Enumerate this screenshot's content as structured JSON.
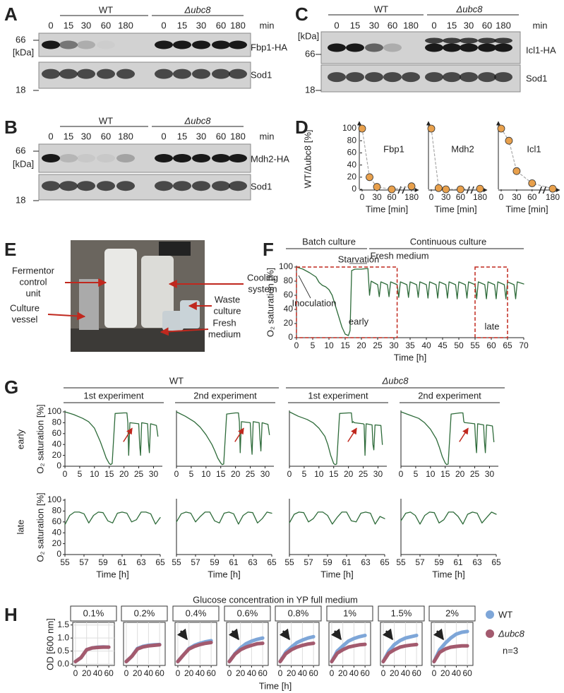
{
  "panels": [
    "A",
    "B",
    "C",
    "D",
    "E",
    "F",
    "G",
    "H"
  ],
  "blots": [
    {
      "groups": [
        "WT",
        "Δubc8"
      ],
      "unit": "min",
      "times": [
        0,
        15,
        30,
        60,
        180
      ],
      "marker_high": 66,
      "marker_unit": "[kDa]",
      "marker_low": 18,
      "targets": [
        "Fbp1-HA",
        "Sod1"
      ]
    },
    {
      "groups": [
        "WT",
        "Δubc8"
      ],
      "unit": "min",
      "times": [
        0,
        15,
        30,
        60,
        180
      ],
      "marker_high": 66,
      "marker_unit": "[kDa]",
      "marker_low": 18,
      "targets": [
        "Mdh2-HA",
        "Sod1"
      ]
    },
    {
      "groups": [
        "WT",
        "Δubc8"
      ],
      "unit": "min",
      "times": [
        0,
        15,
        30,
        60,
        180
      ],
      "marker_high": 66,
      "marker_unit": "[kDa]",
      "marker_low": 18,
      "targets": [
        "Icl1-HA",
        "Sod1"
      ]
    }
  ],
  "photo_labels": {
    "fermentor": [
      "Fermentor",
      "control",
      "unit"
    ],
    "vessel": [
      "Culture",
      "vessel"
    ],
    "cooling": [
      "Cooling",
      "system"
    ],
    "waste": [
      "Waste",
      "culture"
    ],
    "medium": [
      "Fresh",
      "medium"
    ]
  },
  "panel_g": {
    "groups": [
      "WT",
      "Δubc8"
    ],
    "experiments": [
      "1st experiment",
      "2nd experiment",
      "1st experiment",
      "2nd experiment"
    ],
    "rows": [
      "early",
      "late"
    ]
  },
  "panel_h": {
    "header": "Glucose concentration in YP full medium",
    "xlabel": "Time [h]",
    "ylabel": "OD [600 nm]",
    "legend": [
      {
        "name": "WT",
        "color": "#7ea6d8"
      },
      {
        "name": "Δubc8",
        "color": "#a35a6e"
      }
    ],
    "note": "n=3"
  },
  "chart_data": [
    {
      "type": "scatter",
      "title": "Fbp1",
      "x": [
        0,
        15,
        30,
        60,
        180
      ],
      "values": [
        100,
        20,
        4,
        0,
        5
      ],
      "color": "#e8a04c",
      "xlim": [
        0,
        180
      ],
      "xticks": [
        0,
        30,
        60,
        180
      ],
      "ylim": [
        0,
        100
      ],
      "yticks": [
        0,
        20,
        40,
        60,
        80,
        100
      ],
      "xlabel": "Time [min]",
      "ylabel": "WT/Δubc8 [%]"
    },
    {
      "type": "scatter",
      "title": "Mdh2",
      "x": [
        0,
        15,
        30,
        60,
        180
      ],
      "values": [
        100,
        2,
        0,
        0,
        1
      ],
      "color": "#e8a04c",
      "xlim": [
        0,
        180
      ],
      "xticks": [
        0,
        30,
        60,
        180
      ],
      "ylim": [
        0,
        100
      ],
      "xlabel": "Time [min]"
    },
    {
      "type": "scatter",
      "title": "Icl1",
      "x": [
        0,
        15,
        30,
        60,
        180
      ],
      "values": [
        100,
        80,
        30,
        10,
        1
      ],
      "color": "#e8a04c",
      "xlim": [
        0,
        180
      ],
      "xticks": [
        0,
        30,
        60,
        180
      ],
      "ylim": [
        0,
        100
      ],
      "xlabel": "Time [min]"
    },
    {
      "type": "line",
      "x": [
        0,
        2,
        4,
        6,
        7,
        8,
        9,
        10,
        11,
        12,
        13,
        14,
        15,
        16,
        16.5,
        17,
        18,
        20,
        22,
        22.5,
        23,
        25,
        25.5,
        26,
        28,
        28.5,
        29,
        31,
        31.5,
        32,
        34,
        34.5,
        35,
        37,
        37.5,
        38,
        40,
        40.5,
        41,
        43,
        43.5,
        44,
        46,
        46.5,
        47,
        49,
        49.5,
        50,
        52,
        52.5,
        53,
        55,
        55.5,
        56,
        58,
        58.5,
        59,
        61,
        61.5,
        62,
        64,
        64.5,
        65,
        67,
        67.5,
        68,
        70
      ],
      "values": [
        100,
        97,
        92,
        86,
        78,
        74,
        72,
        68,
        60,
        45,
        30,
        15,
        5,
        3,
        10,
        95,
        97,
        97,
        98,
        60,
        80,
        75,
        58,
        79,
        75,
        58,
        79,
        75,
        57,
        79,
        75,
        57,
        79,
        75,
        57,
        79,
        75,
        56,
        79,
        75,
        56,
        79,
        75,
        56,
        79,
        75,
        55,
        79,
        75,
        56,
        79,
        75,
        55,
        79,
        75,
        55,
        79,
        75,
        55,
        79,
        75,
        55,
        79,
        75,
        55,
        79,
        76
      ],
      "color": "#2e6b3a",
      "xlim": [
        0,
        70
      ],
      "xticks": [
        0,
        5,
        10,
        15,
        20,
        25,
        30,
        35,
        40,
        45,
        50,
        55,
        60,
        65,
        70
      ],
      "ylim": [
        0,
        100
      ],
      "yticks": [
        0,
        20,
        40,
        60,
        80,
        100
      ],
      "xlabel": "Time [h]",
      "ylabel": "O₂ saturation [%]",
      "annotations": [
        "Batch culture",
        "Continuous culture",
        "Starvation",
        "Fresh medium",
        "Inoculation",
        "early",
        "late"
      ]
    },
    {
      "type": "line",
      "x": [
        0,
        3,
        6,
        8,
        10,
        12,
        13,
        14,
        15,
        15.5,
        16,
        17,
        20,
        21,
        21.3,
        21.6,
        22,
        25,
        25.3,
        25.6,
        26,
        28,
        28.3,
        28.6,
        29,
        31,
        31.5
      ],
      "values": [
        100,
        95,
        88,
        82,
        70,
        45,
        30,
        15,
        5,
        3,
        5,
        97,
        98,
        98,
        80,
        20,
        80,
        78,
        40,
        20,
        80,
        78,
        45,
        25,
        78,
        75,
        55
      ],
      "color": "#2e6b3a",
      "xlim": [
        0,
        33
      ],
      "xticks": [
        0,
        5,
        10,
        15,
        20,
        25,
        30
      ],
      "ylim": [
        0,
        100
      ],
      "yticks": [
        0,
        20,
        40,
        60,
        80,
        100
      ],
      "ylabel": "O₂ saturation [%]"
    },
    {
      "type": "line",
      "x": [
        0,
        3,
        6,
        8,
        10,
        12,
        13,
        14,
        15,
        15.5,
        16,
        17,
        20,
        21,
        21.3,
        21.6,
        22,
        25,
        25.3,
        25.6,
        26,
        28,
        28.3,
        28.6,
        29,
        31,
        31.5
      ],
      "values": [
        100,
        92,
        82,
        72,
        58,
        40,
        28,
        15,
        6,
        3,
        4,
        96,
        98,
        98,
        82,
        25,
        82,
        80,
        45,
        22,
        82,
        80,
        50,
        28,
        80,
        77,
        58
      ],
      "color": "#2e6b3a",
      "xlim": [
        0,
        33
      ],
      "xticks": [
        0,
        5,
        10,
        15,
        20,
        25,
        30
      ],
      "ylim": [
        0,
        100
      ]
    },
    {
      "type": "line",
      "x": [
        0,
        3,
        6,
        8,
        10,
        12,
        13,
        14,
        15,
        15.5,
        16,
        17,
        20,
        21,
        21.3,
        21.6,
        22,
        25,
        25.3,
        25.6,
        26,
        28,
        28.3,
        28.6,
        29,
        31,
        31.5
      ],
      "values": [
        100,
        92,
        86,
        80,
        70,
        55,
        40,
        20,
        5,
        3,
        4,
        97,
        98,
        98,
        80,
        82,
        80,
        78,
        77,
        20,
        78,
        76,
        40,
        30,
        76,
        75,
        40
      ],
      "color": "#2e6b3a",
      "xlim": [
        0,
        33
      ],
      "xticks": [
        0,
        5,
        10,
        15,
        20,
        25,
        30
      ],
      "ylim": [
        0,
        100
      ]
    },
    {
      "type": "line",
      "x": [
        0,
        3,
        6,
        8,
        10,
        12,
        13,
        14,
        15,
        15.5,
        16,
        17,
        20,
        21,
        21.3,
        21.6,
        22,
        25,
        25.3,
        25.6,
        26,
        28,
        28.3,
        28.6,
        29,
        31,
        31.5
      ],
      "values": [
        100,
        94,
        88,
        80,
        68,
        50,
        35,
        18,
        6,
        3,
        4,
        96,
        98,
        98,
        82,
        80,
        80,
        78,
        45,
        25,
        78,
        76,
        45,
        25,
        76,
        74,
        45
      ],
      "color": "#2e6b3a",
      "xlim": [
        0,
        33
      ],
      "xticks": [
        0,
        5,
        10,
        15,
        20,
        25,
        30
      ],
      "ylim": [
        0,
        100
      ]
    },
    {
      "type": "line",
      "x": [
        55,
        55.5,
        56,
        56.5,
        57,
        57.5,
        58,
        58.5,
        59,
        59.5,
        60,
        60.5,
        61,
        61.5,
        62,
        62.5,
        63,
        63.5,
        64,
        64.5,
        65
      ],
      "values": [
        55,
        72,
        78,
        78,
        75,
        58,
        72,
        78,
        77,
        62,
        58,
        76,
        78,
        76,
        60,
        64,
        78,
        78,
        75,
        56,
        68
      ],
      "color": "#2e6b3a",
      "xlim": [
        55,
        65
      ],
      "xticks": [
        55,
        57,
        59,
        61,
        63,
        65
      ],
      "ylim": [
        0,
        100
      ],
      "yticks": [
        0,
        20,
        40,
        60,
        80,
        100
      ],
      "xlabel": "Time [h]",
      "ylabel": "O₂ saturation [%]"
    },
    {
      "type": "line",
      "x": [
        55,
        55.5,
        56,
        56.5,
        57,
        57.5,
        58,
        58.5,
        59,
        59.5,
        60,
        60.5,
        61,
        61.5,
        62,
        62.5,
        63,
        63.5,
        64,
        64.5,
        65
      ],
      "values": [
        60,
        75,
        78,
        76,
        60,
        70,
        78,
        78,
        62,
        58,
        76,
        78,
        75,
        56,
        72,
        78,
        77,
        58,
        66,
        78,
        76
      ],
      "color": "#2e6b3a",
      "xlim": [
        55,
        65
      ],
      "xticks": [
        55,
        57,
        59,
        61,
        63,
        65
      ],
      "ylim": [
        0,
        100
      ],
      "xlabel": "Time [h]"
    },
    {
      "type": "line",
      "x": [
        55,
        55.5,
        56,
        56.5,
        57,
        57.5,
        58,
        58.5,
        59,
        59.5,
        60,
        60.5,
        61,
        61.5,
        62,
        62.5,
        63,
        63.5,
        64,
        64.5,
        65
      ],
      "values": [
        58,
        74,
        78,
        77,
        60,
        66,
        78,
        78,
        72,
        56,
        68,
        78,
        78,
        62,
        60,
        76,
        78,
        76,
        56,
        70,
        66
      ],
      "color": "#2e6b3a",
      "xlim": [
        55,
        65
      ],
      "xticks": [
        55,
        57,
        59,
        61,
        63,
        65
      ],
      "ylim": [
        0,
        100
      ],
      "xlabel": "Time [h]"
    },
    {
      "type": "line",
      "x": [
        55,
        55.5,
        56,
        56.5,
        57,
        57.5,
        58,
        58.5,
        59,
        59.5,
        60,
        60.5,
        61,
        61.5,
        62,
        62.5,
        63,
        63.5,
        64,
        64.5,
        65
      ],
      "values": [
        62,
        76,
        78,
        72,
        56,
        72,
        78,
        77,
        58,
        64,
        78,
        78,
        70,
        56,
        74,
        78,
        76,
        58,
        68,
        78,
        74
      ],
      "color": "#2e6b3a",
      "xlim": [
        55,
        65
      ],
      "xticks": [
        55,
        57,
        59,
        61,
        63,
        65
      ],
      "ylim": [
        0,
        100
      ],
      "xlabel": "Time [h]"
    },
    {
      "type": "line",
      "title": "0.1%",
      "x": [
        0,
        10,
        20,
        30,
        40,
        50,
        60
      ],
      "series": [
        {
          "color": "#7ea6d8",
          "values": [
            0.1,
            0.25,
            0.55,
            0.62,
            0.65,
            0.66,
            0.65
          ]
        },
        {
          "color": "#a35a6e",
          "values": [
            0.1,
            0.25,
            0.55,
            0.62,
            0.64,
            0.65,
            0.65
          ]
        }
      ],
      "xlim": [
        -5,
        70
      ],
      "xticks": [
        0,
        20,
        40,
        60
      ],
      "ylim": [
        -0.05,
        1.6
      ],
      "yticks": [
        {
          "value": 0,
          "label": "0.0"
        },
        {
          "value": 0.5,
          "label": "0.5"
        },
        {
          "value": 1,
          "label": "1.0"
        },
        {
          "value": 1.5,
          "label": "1.5"
        }
      ]
    },
    {
      "type": "line",
      "title": "0.2%",
      "x": [
        0,
        10,
        20,
        30,
        40,
        50,
        60
      ],
      "series": [
        {
          "color": "#7ea6d8",
          "values": [
            0.1,
            0.3,
            0.6,
            0.68,
            0.72,
            0.74,
            0.75
          ]
        },
        {
          "color": "#a35a6e",
          "values": [
            0.1,
            0.3,
            0.58,
            0.66,
            0.7,
            0.72,
            0.74
          ]
        }
      ],
      "xlim": [
        -5,
        70
      ],
      "xticks": [
        0,
        20,
        40,
        60
      ],
      "ylim": [
        -0.05,
        1.6
      ]
    },
    {
      "type": "line",
      "title": "0.4%",
      "x": [
        0,
        10,
        20,
        30,
        40,
        50,
        60
      ],
      "series": [
        {
          "color": "#7ea6d8",
          "values": [
            0.1,
            0.35,
            0.6,
            0.72,
            0.8,
            0.86,
            0.9
          ]
        },
        {
          "color": "#a35a6e",
          "values": [
            0.1,
            0.35,
            0.58,
            0.68,
            0.75,
            0.8,
            0.83
          ]
        }
      ],
      "xlim": [
        -5,
        70
      ],
      "xticks": [
        0,
        20,
        40,
        60
      ],
      "ylim": [
        -0.05,
        1.6
      ]
    },
    {
      "type": "line",
      "title": "0.6%",
      "x": [
        0,
        10,
        20,
        30,
        40,
        50,
        60
      ],
      "series": [
        {
          "color": "#7ea6d8",
          "values": [
            0.1,
            0.4,
            0.62,
            0.78,
            0.88,
            0.95,
            1.0
          ]
        },
        {
          "color": "#a35a6e",
          "values": [
            0.1,
            0.38,
            0.55,
            0.65,
            0.72,
            0.78,
            0.8
          ]
        }
      ],
      "xlim": [
        -5,
        70
      ],
      "xticks": [
        0,
        20,
        40,
        60
      ],
      "ylim": [
        -0.05,
        1.6
      ]
    },
    {
      "type": "line",
      "title": "0.8%",
      "x": [
        0,
        10,
        20,
        30,
        40,
        50,
        60
      ],
      "series": [
        {
          "color": "#7ea6d8",
          "values": [
            0.1,
            0.45,
            0.65,
            0.82,
            0.92,
            1.0,
            1.05
          ]
        },
        {
          "color": "#a35a6e",
          "values": [
            0.1,
            0.4,
            0.55,
            0.65,
            0.72,
            0.77,
            0.8
          ]
        }
      ],
      "xlim": [
        -5,
        70
      ],
      "xticks": [
        0,
        20,
        40,
        60
      ],
      "ylim": [
        -0.05,
        1.6
      ]
    },
    {
      "type": "line",
      "title": "1%",
      "x": [
        0,
        10,
        20,
        30,
        40,
        50,
        60
      ],
      "series": [
        {
          "color": "#7ea6d8",
          "values": [
            0.1,
            0.5,
            0.7,
            0.88,
            0.98,
            1.05,
            1.1
          ]
        },
        {
          "color": "#a35a6e",
          "values": [
            0.1,
            0.42,
            0.55,
            0.65,
            0.7,
            0.74,
            0.76
          ]
        }
      ],
      "xlim": [
        -5,
        70
      ],
      "xticks": [
        0,
        20,
        40,
        60
      ],
      "ylim": [
        -0.05,
        1.6
      ]
    },
    {
      "type": "line",
      "title": "1.5%",
      "x": [
        0,
        10,
        20,
        30,
        40,
        50,
        60
      ],
      "series": [
        {
          "color": "#7ea6d8",
          "values": [
            0.1,
            0.5,
            0.75,
            0.9,
            1.0,
            1.05,
            1.1
          ]
        },
        {
          "color": "#a35a6e",
          "values": [
            0.1,
            0.42,
            0.55,
            0.65,
            0.7,
            0.73,
            0.75
          ]
        }
      ],
      "xlim": [
        -5,
        70
      ],
      "xticks": [
        0,
        20,
        40,
        60
      ],
      "ylim": [
        -0.05,
        1.6
      ]
    },
    {
      "type": "line",
      "title": "2%",
      "x": [
        0,
        10,
        20,
        30,
        40,
        50,
        60
      ],
      "series": [
        {
          "color": "#7ea6d8",
          "values": [
            0.1,
            0.55,
            0.8,
            1.0,
            1.15,
            1.22,
            1.25
          ]
        },
        {
          "color": "#a35a6e",
          "values": [
            0.1,
            0.45,
            0.58,
            0.65,
            0.68,
            0.7,
            0.7
          ]
        }
      ],
      "xlim": [
        -5,
        70
      ],
      "xticks": [
        0,
        20,
        40,
        60
      ],
      "ylim": [
        -0.05,
        1.6
      ]
    }
  ]
}
